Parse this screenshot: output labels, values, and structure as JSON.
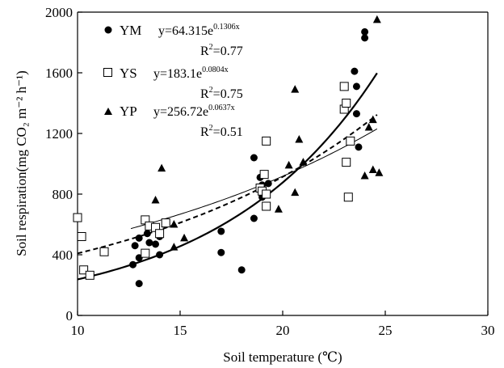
{
  "chart_data": {
    "type": "scatter",
    "xlabel": "Soil temperature (℃)",
    "ylabel": "Soil respiration(mg CO₂ m⁻² h⁻¹)",
    "xlim": [
      10,
      30
    ],
    "ylim": [
      0,
      2000
    ],
    "xticks": [
      "10",
      "15",
      "20",
      "25",
      "30"
    ],
    "yticks": [
      "0",
      "400",
      "800",
      "1200",
      "1600",
      "2000"
    ],
    "legend_position": "top-left",
    "grid": false,
    "series": [
      {
        "name": "YM",
        "marker": "circle",
        "fit_line": "solid",
        "equation": "y=64.315e",
        "exponent": "0.1306x",
        "r2_prefix": "R",
        "r2_value": "=0.77",
        "fit": {
          "a": 64.315,
          "b": 0.1306,
          "x_range": [
            10,
            24.6
          ]
        },
        "points": [
          [
            12.7,
            335
          ],
          [
            12.8,
            460
          ],
          [
            13.0,
            380
          ],
          [
            13.0,
            510
          ],
          [
            13.0,
            210
          ],
          [
            13.4,
            540
          ],
          [
            13.5,
            480
          ],
          [
            13.8,
            470
          ],
          [
            14.0,
            520
          ],
          [
            14.0,
            400
          ],
          [
            17.0,
            555
          ],
          [
            17.0,
            415
          ],
          [
            18.0,
            300
          ],
          [
            18.6,
            1040
          ],
          [
            18.6,
            640
          ],
          [
            18.9,
            910
          ],
          [
            19.0,
            860
          ],
          [
            19.0,
            780
          ],
          [
            19.3,
            870
          ],
          [
            23.5,
            1610
          ],
          [
            23.6,
            1510
          ],
          [
            23.6,
            1330
          ],
          [
            23.7,
            1110
          ],
          [
            24.0,
            1870
          ],
          [
            24.0,
            1830
          ]
        ]
      },
      {
        "name": "YS",
        "marker": "open-square",
        "fit_line": "dashed",
        "equation": "y=183.1e",
        "exponent": "0.0804x",
        "r2_prefix": "R",
        "r2_value": "=0.75",
        "fit": {
          "a": 183.1,
          "b": 0.0804,
          "x_range": [
            10,
            24.6
          ]
        },
        "points": [
          [
            10.0,
            645
          ],
          [
            10.2,
            520
          ],
          [
            10.3,
            300
          ],
          [
            10.6,
            265
          ],
          [
            11.3,
            420
          ],
          [
            13.3,
            630
          ],
          [
            13.3,
            410
          ],
          [
            13.5,
            590
          ],
          [
            13.8,
            580
          ],
          [
            14.0,
            540
          ],
          [
            14.3,
            610
          ],
          [
            18.9,
            840
          ],
          [
            19.0,
            820
          ],
          [
            19.1,
            930
          ],
          [
            19.2,
            1150
          ],
          [
            19.2,
            800
          ],
          [
            19.2,
            720
          ],
          [
            23.0,
            1510
          ],
          [
            23.0,
            1360
          ],
          [
            23.1,
            1400
          ],
          [
            23.1,
            1010
          ],
          [
            23.2,
            780
          ],
          [
            23.3,
            1150
          ]
        ]
      },
      {
        "name": "YP",
        "marker": "triangle",
        "fit_line": "thin-solid",
        "equation": "y=256.72e",
        "exponent": "0.0637x",
        "r2_prefix": "R",
        "r2_value": "=0.51",
        "fit": {
          "a": 256.72,
          "b": 0.0637,
          "x_range": [
            12.6,
            24.6
          ]
        },
        "points": [
          [
            13.8,
            760
          ],
          [
            14.1,
            970
          ],
          [
            14.7,
            450
          ],
          [
            14.7,
            600
          ],
          [
            15.2,
            510
          ],
          [
            19.8,
            700
          ],
          [
            20.3,
            990
          ],
          [
            20.6,
            810
          ],
          [
            20.6,
            1490
          ],
          [
            20.8,
            1160
          ],
          [
            21.0,
            1010
          ],
          [
            24.0,
            920
          ],
          [
            24.2,
            1240
          ],
          [
            24.4,
            960
          ],
          [
            24.4,
            1290
          ],
          [
            24.6,
            1950
          ],
          [
            24.7,
            940
          ]
        ]
      }
    ]
  }
}
